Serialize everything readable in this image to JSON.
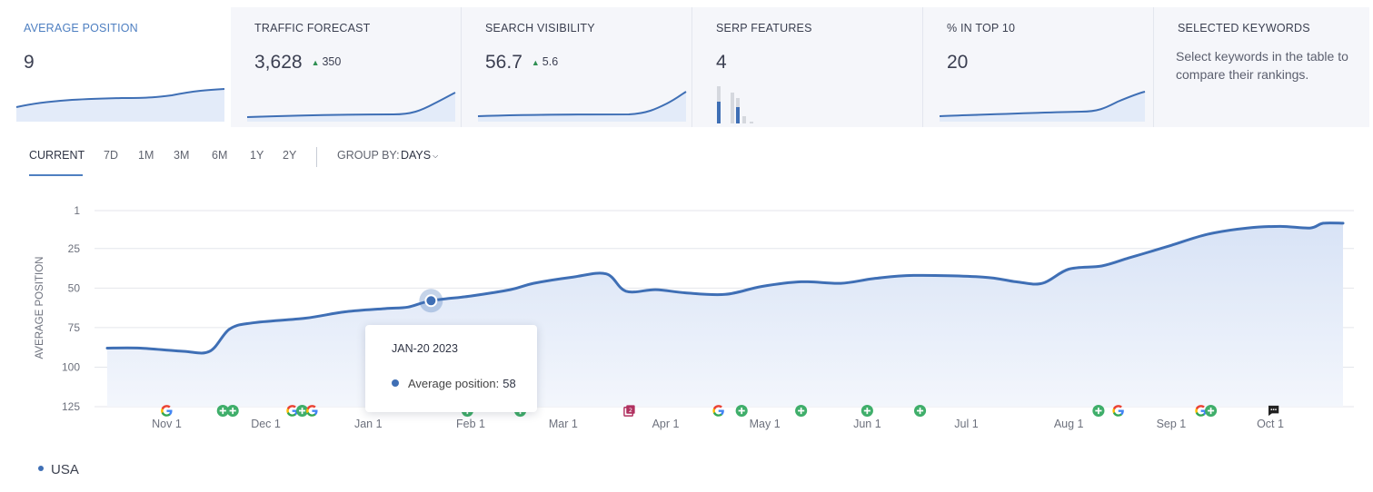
{
  "kpis": [
    {
      "title": "AVERAGE POSITION",
      "value": "9",
      "delta": "",
      "active": true
    },
    {
      "title": "TRAFFIC FORECAST",
      "value": "3,628",
      "delta": "350"
    },
    {
      "title": "SEARCH VISIBILITY",
      "value": "56.7",
      "delta": "5.6"
    },
    {
      "title": "SERP FEATURES",
      "value": "4",
      "delta": ""
    },
    {
      "title": "% IN TOP 10",
      "value": "20",
      "delta": ""
    },
    {
      "title": "SELECTED KEYWORDS",
      "description": "Select keywords in the table to compare their rankings."
    }
  ],
  "periods": [
    "CURRENT",
    "7D",
    "1M",
    "3M",
    "6M",
    "1Y",
    "2Y"
  ],
  "group_by": {
    "label": "GROUP BY:",
    "value": "DAYS"
  },
  "colors": {
    "accent": "#4e7fc1",
    "line": "#3f6fb5",
    "fill": "#dfe8f8",
    "google": "multicolor",
    "plus": "#3fae6a",
    "badge": "#b0305f"
  },
  "chart_data": {
    "type": "area",
    "ylabel": "AVERAGE POSITION",
    "y_ticks": [
      1,
      25,
      50,
      75,
      100,
      125
    ],
    "y_reversed": true,
    "ylim": [
      1,
      125
    ],
    "x_ticks": [
      "Nov 1",
      "Dec 1",
      "Jan 1",
      "Feb 1",
      "Mar 1",
      "Apr 1",
      "May 1",
      "Jun 1",
      "Jul 1",
      "Aug 1",
      "Sep 1",
      "Oct 1"
    ],
    "xlim": [
      "2022-10-14",
      "2023-10-23"
    ],
    "series": [
      {
        "name": "USA",
        "points": [
          [
            "2022-10-14",
            88
          ],
          [
            "2022-10-24",
            88
          ],
          [
            "2022-11-06",
            90
          ],
          [
            "2022-11-14",
            90
          ],
          [
            "2022-11-20",
            76
          ],
          [
            "2022-11-27",
            72
          ],
          [
            "2022-12-13",
            69
          ],
          [
            "2022-12-25",
            65
          ],
          [
            "2023-01-06",
            63
          ],
          [
            "2023-01-13",
            62
          ],
          [
            "2023-01-20",
            58
          ],
          [
            "2023-02-01",
            55
          ],
          [
            "2023-02-13",
            51
          ],
          [
            "2023-02-20",
            47
          ],
          [
            "2023-03-04",
            43
          ],
          [
            "2023-03-14",
            41
          ],
          [
            "2023-03-20",
            52
          ],
          [
            "2023-03-29",
            51
          ],
          [
            "2023-04-07",
            53
          ],
          [
            "2023-04-19",
            54
          ],
          [
            "2023-04-30",
            49
          ],
          [
            "2023-05-12",
            46
          ],
          [
            "2023-05-24",
            47
          ],
          [
            "2023-06-03",
            44
          ],
          [
            "2023-06-15",
            42
          ],
          [
            "2023-07-06",
            43
          ],
          [
            "2023-07-16",
            46
          ],
          [
            "2023-07-24",
            47
          ],
          [
            "2023-08-01",
            38
          ],
          [
            "2023-08-11",
            36
          ],
          [
            "2023-08-19",
            31
          ],
          [
            "2023-08-24",
            28
          ],
          [
            "2023-09-01",
            23
          ],
          [
            "2023-09-12",
            16
          ],
          [
            "2023-09-24",
            12
          ],
          [
            "2023-10-04",
            11
          ],
          [
            "2023-10-13",
            12
          ],
          [
            "2023-10-17",
            9
          ],
          [
            "2023-10-23",
            9
          ]
        ]
      }
    ],
    "highlight": {
      "date": "JAN-20 2023",
      "label": "Average position:",
      "value": 58
    },
    "legend": [
      "USA"
    ],
    "grid": true,
    "serp_events": [
      {
        "date": "2022-11-01",
        "icon": "google-icon"
      },
      {
        "date": "2022-11-18",
        "icon": "plus-icon"
      },
      {
        "date": "2022-11-21",
        "icon": "plus-icon"
      },
      {
        "date": "2022-12-09",
        "icon": "google-icon"
      },
      {
        "date": "2022-12-12",
        "icon": "plus-icon"
      },
      {
        "date": "2022-12-15",
        "icon": "google-icon"
      },
      {
        "date": "2023-01-31",
        "icon": "plus-icon"
      },
      {
        "date": "2023-02-16",
        "icon": "plus-icon"
      },
      {
        "date": "2023-03-21",
        "icon": "duplicate-icon"
      },
      {
        "date": "2023-04-17",
        "icon": "google-icon"
      },
      {
        "date": "2023-04-24",
        "icon": "plus-icon"
      },
      {
        "date": "2023-05-12",
        "icon": "plus-icon"
      },
      {
        "date": "2023-06-01",
        "icon": "plus-icon"
      },
      {
        "date": "2023-06-17",
        "icon": "plus-icon"
      },
      {
        "date": "2023-08-10",
        "icon": "plus-icon"
      },
      {
        "date": "2023-08-16",
        "icon": "google-icon"
      },
      {
        "date": "2023-09-10",
        "icon": "google-icon"
      },
      {
        "date": "2023-09-13",
        "icon": "plus-icon"
      },
      {
        "date": "2023-10-02",
        "icon": "comment-icon"
      }
    ]
  }
}
